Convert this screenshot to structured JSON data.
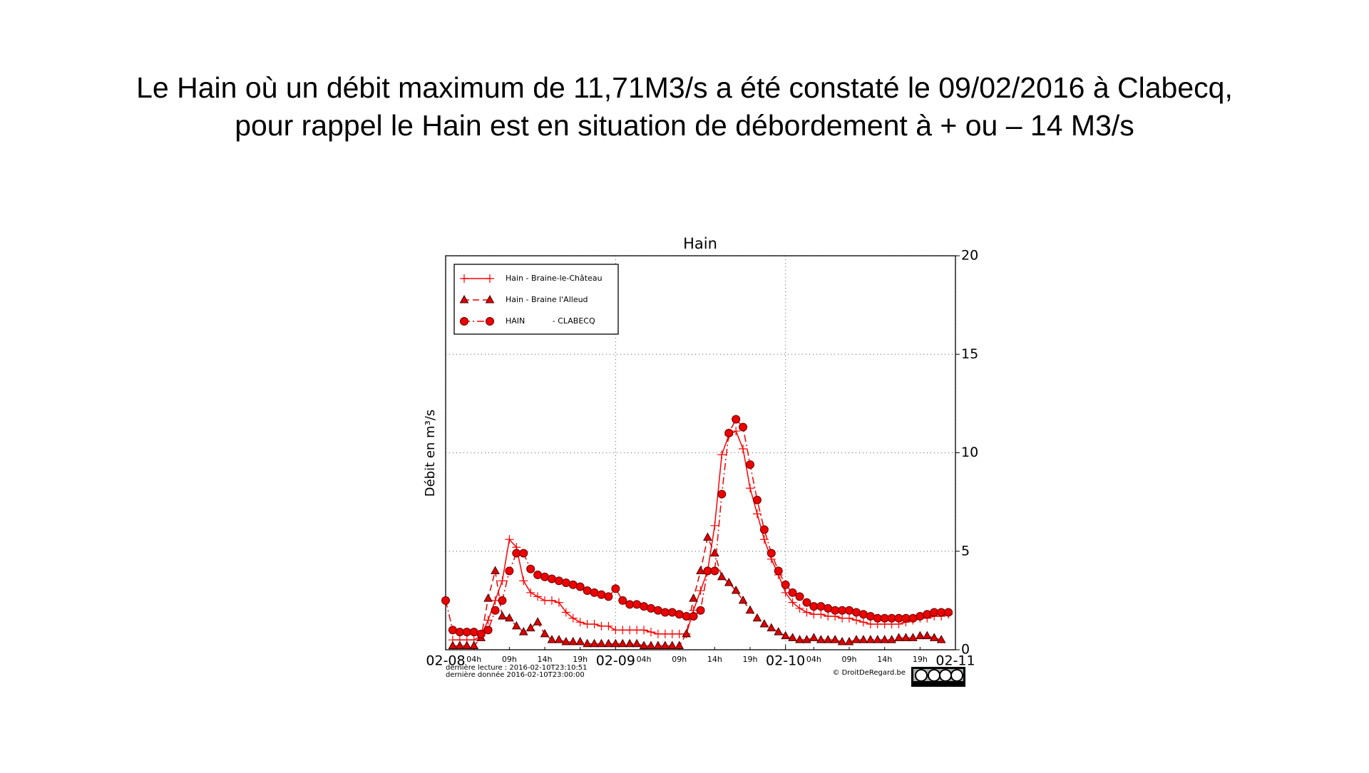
{
  "slide_title": [
    "Le Hain où un débit maximum de 11,71M3/s a été constaté le 09/02/2016 à Clabecq,",
    "pour rappel le Hain est en situation de débordement à + ou – 14 M3/s"
  ],
  "chart_data": {
    "type": "line",
    "title": "Hain",
    "y_label": "Débit en m³/s",
    "x": [
      0,
      1,
      2,
      3,
      4,
      5,
      6,
      7,
      8,
      9,
      10,
      11,
      12,
      13,
      14,
      15,
      16,
      17,
      18,
      19,
      20,
      21,
      22,
      23,
      24,
      25,
      26,
      27,
      28,
      29,
      30,
      31,
      32,
      33,
      34,
      35,
      36,
      37,
      38,
      39,
      40,
      41,
      42,
      43,
      44,
      45,
      46,
      47,
      48,
      49,
      50,
      51,
      52,
      53,
      54,
      55,
      56,
      57,
      58,
      59,
      60,
      61,
      62,
      63,
      64,
      65,
      66,
      67,
      68,
      69,
      70,
      71
    ],
    "xlim": [
      0,
      72
    ],
    "xticks": [
      {
        "value": 0,
        "label": "02-08"
      },
      {
        "value": 24,
        "label": "02-09"
      },
      {
        "value": 48,
        "label": "02-10"
      },
      {
        "value": 72,
        "label": "02-11"
      }
    ],
    "xticks_minor": [
      {
        "value": 4,
        "label": "04h"
      },
      {
        "value": 9,
        "label": "09h"
      },
      {
        "value": 14,
        "label": "14h"
      },
      {
        "value": 19,
        "label": "19h"
      },
      {
        "value": 28,
        "label": "04h"
      },
      {
        "value": 33,
        "label": "09h"
      },
      {
        "value": 38,
        "label": "14h"
      },
      {
        "value": 43,
        "label": "19h"
      },
      {
        "value": 52,
        "label": "04h"
      },
      {
        "value": 57,
        "label": "09h"
      },
      {
        "value": 62,
        "label": "14h"
      },
      {
        "value": 67,
        "label": "19h"
      }
    ],
    "ylim": [
      0,
      20
    ],
    "yticks": [
      0,
      5,
      10,
      15,
      20
    ],
    "y_axis_side": "right",
    "grid": true,
    "legend": "upper left",
    "series": [
      {
        "name": "Hain - Braine-le-Château",
        "color": "#ff0000",
        "marker": "plus",
        "linestyle": "solid",
        "values": [
          null,
          0.5,
          0.5,
          0.5,
          0.5,
          0.7,
          1.5,
          2.5,
          3.5,
          5.6,
          5.2,
          3.5,
          2.9,
          2.7,
          2.5,
          2.5,
          2.4,
          1.9,
          1.6,
          1.4,
          1.3,
          1.3,
          1.2,
          1.2,
          1.0,
          1.0,
          1.0,
          1.0,
          1.0,
          0.9,
          0.8,
          0.8,
          0.8,
          0.8,
          0.8,
          2.0,
          3.0,
          4.0,
          6.3,
          9.9,
          10.9,
          11.1,
          10.2,
          8.2,
          6.9,
          5.6,
          4.6,
          3.8,
          2.9,
          2.4,
          2.1,
          1.9,
          1.8,
          1.8,
          1.7,
          1.7,
          1.6,
          1.6,
          1.5,
          1.4,
          1.3,
          1.3,
          1.3,
          1.3,
          1.3,
          1.4,
          1.5,
          1.6,
          1.6,
          1.7,
          1.7,
          1.8
        ]
      },
      {
        "name": "Hain - Braine l'Alleud",
        "color": "#dd0000",
        "marker": "triangle",
        "linestyle": "dashed",
        "values": [
          null,
          0.2,
          0.2,
          0.2,
          0.2,
          0.6,
          2.6,
          4.0,
          1.7,
          1.6,
          1.2,
          0.9,
          1.1,
          1.4,
          0.8,
          0.5,
          0.5,
          0.4,
          0.4,
          0.4,
          0.3,
          0.3,
          0.3,
          0.3,
          0.3,
          0.3,
          0.3,
          0.3,
          0.2,
          0.2,
          0.2,
          0.2,
          0.2,
          0.2,
          0.8,
          2.6,
          4.0,
          5.7,
          4.9,
          3.7,
          3.4,
          3.0,
          2.5,
          2.0,
          1.6,
          1.3,
          1.1,
          0.9,
          0.7,
          0.6,
          0.5,
          0.5,
          0.6,
          0.5,
          0.5,
          0.5,
          0.4,
          0.4,
          0.5,
          0.5,
          0.5,
          0.5,
          0.5,
          0.5,
          0.6,
          0.6,
          0.6,
          0.7,
          0.7,
          0.6,
          0.5,
          null
        ]
      },
      {
        "name": "HAIN           - CLABECQ",
        "color": "#ee0000",
        "marker": "circle",
        "linestyle": "dashdot",
        "values": [
          2.5,
          1.0,
          0.9,
          0.9,
          0.9,
          0.8,
          1.0,
          2.0,
          2.5,
          4.0,
          4.9,
          4.9,
          4.1,
          3.8,
          3.7,
          3.6,
          3.5,
          3.4,
          3.3,
          3.2,
          3.0,
          2.9,
          2.8,
          2.7,
          3.1,
          2.5,
          2.3,
          2.3,
          2.2,
          2.1,
          2.0,
          1.9,
          1.9,
          1.8,
          1.7,
          1.7,
          2.0,
          4.0,
          4.0,
          7.9,
          11.0,
          11.7,
          11.3,
          9.4,
          7.6,
          6.1,
          4.9,
          4.0,
          3.3,
          2.9,
          2.7,
          2.4,
          2.2,
          2.2,
          2.1,
          2.0,
          2.0,
          2.0,
          1.9,
          1.8,
          1.7,
          1.6,
          1.6,
          1.6,
          1.6,
          1.6,
          1.6,
          1.7,
          1.8,
          1.9,
          1.9,
          1.9
        ]
      }
    ],
    "footnotes": [
      "dernière lecture : 2016-02-10T23:10:51",
      "dernière donnée  2016-02-10T23:00:00"
    ],
    "credit": "© DroitDeRegard.be"
  }
}
